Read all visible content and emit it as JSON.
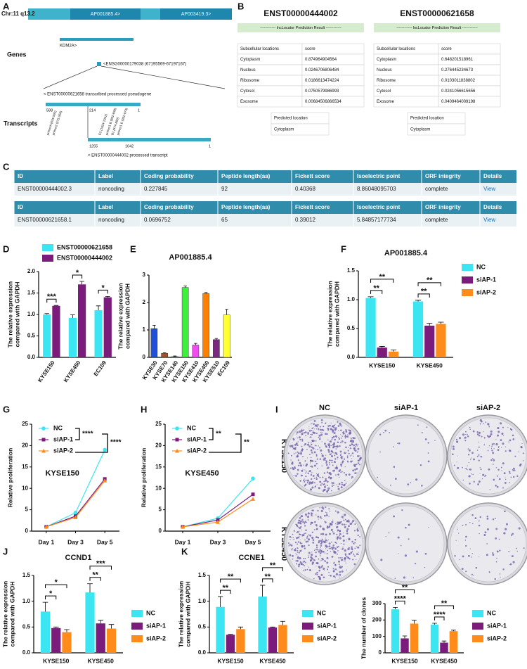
{
  "panel_labels": [
    "A",
    "B",
    "C",
    "D",
    "E",
    "F",
    "G",
    "H",
    "I",
    "J",
    "K"
  ],
  "panel_a": {
    "chromosome": "Chr:11 q13.2",
    "genes_on_track": [
      "AP001885.4>",
      "AP003419.3>"
    ],
    "genes_label": "Genes",
    "gene": "KDM2A>",
    "locus": "<ENSG00000179038 (67195569-67197167)",
    "transcript_1": "< ENST00000621658  transcribed processed pseudogene",
    "transcripts_label": "Transcripts",
    "transcript_1_coords": [
      "588",
      "214",
      "1"
    ],
    "transcript_2_coords": [
      "1255",
      "1042",
      "1"
    ],
    "transcript_2": "< ENST00000444002  processed transcript",
    "primers": [
      "primerA (634-593)",
      "primer2 (575-556)",
      "E2 (1024-1042)",
      "primer1 B (852-839)",
      "B1 (874-890)",
      "primer1 E (952-973)"
    ]
  },
  "panel_b": {
    "tables": [
      {
        "title": "ENST00000444002",
        "subtitle": "------------ lncLocator Prediction Result ------------",
        "headers": [
          "Subcellular locations",
          "score"
        ],
        "rows": [
          [
            "Cytoplasm",
            "0.874964904564"
          ],
          [
            "Nucleus",
            "0.0246706806484"
          ],
          [
            "Ribosome",
            "0.0186613474224"
          ],
          [
            "Cytosol",
            "0.0750579986993"
          ],
          [
            "Exosome",
            "0.00684506866534"
          ]
        ],
        "predicted": [
          "Predicted location",
          "Cytoplasm"
        ]
      },
      {
        "title": "ENST00000621658",
        "subtitle": "------------ lncLocator Prediction Result ------------",
        "headers": [
          "Subcellular locations",
          "score"
        ],
        "rows": [
          [
            "Cytoplasm",
            "0.648201518961"
          ],
          [
            "Nucleus",
            "0.276445234673"
          ],
          [
            "Ribosome",
            "0.0103011838802"
          ],
          [
            "Cytosol",
            "0.0241056615656"
          ],
          [
            "Exosome",
            "0.0409464009198"
          ]
        ],
        "predicted": [
          "Predicted location",
          "Cytoplasm"
        ]
      }
    ]
  },
  "panel_c": {
    "tables": [
      {
        "headers": [
          "ID",
          "Label",
          "Coding probability",
          "Peptide length(aa)",
          "Fickett score",
          "Isoelectric point",
          "ORF integrity",
          "Details"
        ],
        "row": [
          "ENST00000444002.3",
          "noncoding",
          "0.227845",
          "92",
          "0.40368",
          "8.86048095703",
          "complete",
          "View"
        ]
      },
      {
        "headers": [
          "ID",
          "Label",
          "Coding probability",
          "Peptide length(aa)",
          "Fickett score",
          "Isoelectric point",
          "ORF integrity",
          "Details"
        ],
        "row": [
          "ENST00000621658.1",
          "noncoding",
          "0.0696752",
          "65",
          "0.39012",
          "5.84857177734",
          "complete",
          "View"
        ]
      }
    ]
  },
  "panel_i": {
    "columns": [
      "NC",
      "siAP-1",
      "siAP-2"
    ],
    "rows": [
      "KYSE150",
      "KYSE450"
    ]
  },
  "chart_data": [
    {
      "type": "bar",
      "categories": [
        "KYSE150",
        "KYSE450",
        "EC109"
      ],
      "series": [
        {
          "name": "ENST00000621658",
          "color": "#3be6f2",
          "values": [
            1.0,
            0.92,
            1.1
          ],
          "errors": [
            0.02,
            0.07,
            0.1
          ]
        },
        {
          "name": "ENST00000444002",
          "color": "#7b1c7d",
          "values": [
            1.2,
            1.7,
            1.4
          ],
          "errors": [
            0.01,
            0.07,
            0.02
          ]
        }
      ],
      "ylabel": [
        "The relative expression",
        "compared with GAPDH"
      ],
      "ylim": [
        0,
        2
      ],
      "yticks": [
        {
          "value": 0,
          "label": "0.0"
        },
        0.5,
        {
          "value": 1,
          "label": "1.0"
        },
        1.5,
        {
          "value": 2,
          "label": "2.0"
        }
      ],
      "legend": "top",
      "significance": [
        "***",
        "*",
        "*"
      ]
    },
    {
      "type": "bar",
      "title": "AP001885.4",
      "categories": [
        "KYSE30",
        "KYSE70",
        "KYSE140",
        "KYSE150",
        "KYSE410",
        "KYSE450",
        "KYSE510",
        "EC109"
      ],
      "values": [
        1.05,
        0.15,
        0.03,
        2.55,
        0.45,
        2.33,
        0.65,
        1.55
      ],
      "errors": [
        0.12,
        0.02,
        0.02,
        0.05,
        0.06,
        0.03,
        0.04,
        0.2
      ],
      "colors": [
        "#1f4fd8",
        "#a0522d",
        "#26b3a8",
        "#3cf03c",
        "#f04cf0",
        "#ff8000",
        "#7b2b7d",
        "#ffff33"
      ],
      "ylabel": [
        "The relative expression",
        "compared with GAPDH"
      ],
      "ylim": [
        0,
        3
      ],
      "yticks": [
        0,
        1,
        2,
        3
      ]
    },
    {
      "type": "bar",
      "title": "AP001885.4",
      "categories": [
        "KYSE150",
        "KYSE450"
      ],
      "series": [
        {
          "name": "NC",
          "color": "#3be6f2",
          "values": [
            1.03,
            0.97
          ],
          "errors": [
            0.02,
            0.02
          ]
        },
        {
          "name": "siAP-1",
          "color": "#7b1c7d",
          "values": [
            0.17,
            0.55
          ],
          "errors": [
            0.02,
            0.04
          ]
        },
        {
          "name": "siAP-2",
          "color": "#ff8c1a",
          "values": [
            0.1,
            0.58
          ],
          "errors": [
            0.03,
            0.03
          ]
        }
      ],
      "ylabel": [
        "The relative expression",
        "compared with GAPDH"
      ],
      "ylim": [
        0,
        1.5
      ],
      "yticks": [
        {
          "value": 0,
          "label": "0.0"
        },
        0.5,
        {
          "value": 1,
          "label": "1.0"
        },
        1.5
      ],
      "legend": "right",
      "significance": [
        "**",
        "**",
        "**",
        "**"
      ]
    },
    {
      "type": "line",
      "categories": [
        "Day 1",
        "Day 3",
        "Day 5"
      ],
      "series": [
        {
          "name": "NC",
          "color": "#3be6f2",
          "marker": "circle",
          "values": [
            1,
            4.3,
            19
          ]
        },
        {
          "name": "siAP-1",
          "color": "#7b1c7d",
          "marker": "square",
          "values": [
            1,
            3.5,
            12.2
          ]
        },
        {
          "name": "siAP-2",
          "color": "#ff8c1a",
          "marker": "triangle",
          "values": [
            1,
            3.2,
            11.8
          ]
        }
      ],
      "ylabel": [
        "Relative proliferation"
      ],
      "annotation": "KYSE150",
      "ylim": [
        0,
        25
      ],
      "yticks": [
        0,
        5,
        10,
        15,
        20,
        25
      ],
      "legend": "upper left",
      "significance": [
        "****",
        "****"
      ]
    },
    {
      "type": "line",
      "categories": [
        "Day 1",
        "Day 3",
        "Day 5"
      ],
      "series": [
        {
          "name": "NC",
          "color": "#3be6f2",
          "marker": "circle",
          "values": [
            1,
            3,
            12.3
          ]
        },
        {
          "name": "siAP-1",
          "color": "#7b1c7d",
          "marker": "square",
          "values": [
            1,
            2.6,
            8.6
          ]
        },
        {
          "name": "siAP-2",
          "color": "#ff8c1a",
          "marker": "triangle",
          "values": [
            1,
            2.1,
            7.5
          ]
        }
      ],
      "ylabel": [
        "Relative proliferation"
      ],
      "annotation": "KYSE450",
      "ylim": [
        0,
        25
      ],
      "yticks": [
        0,
        5,
        10,
        15,
        20,
        25
      ],
      "legend": "upper left",
      "significance": [
        "**",
        "**"
      ]
    },
    {
      "type": "bar",
      "title": "CCND1",
      "categories": [
        "KYSE150",
        "KYSE450"
      ],
      "series": [
        {
          "name": "NC",
          "color": "#3be6f2",
          "values": [
            0.8,
            1.17
          ],
          "errors": [
            0.18,
            0.17
          ]
        },
        {
          "name": "siAP-1",
          "color": "#7b1c7d",
          "values": [
            0.48,
            0.57
          ],
          "errors": [
            0.02,
            0.06
          ]
        },
        {
          "name": "siAP-2",
          "color": "#ff8c1a",
          "values": [
            0.4,
            0.47
          ],
          "errors": [
            0.05,
            0.08
          ]
        }
      ],
      "ylabel": [
        "The relative expression",
        "compared with GAPDH"
      ],
      "ylim": [
        0,
        1.5
      ],
      "yticks": [
        {
          "value": 0,
          "label": "0.0"
        },
        0.5,
        {
          "value": 1,
          "label": "1.0"
        },
        1.5
      ],
      "legend": "right",
      "significance": [
        "*",
        "*",
        "**",
        "***"
      ]
    },
    {
      "type": "bar",
      "title": "CCNE1",
      "categories": [
        "KYSE150",
        "KYSE450"
      ],
      "series": [
        {
          "name": "NC",
          "color": "#3be6f2",
          "values": [
            0.89,
            1.09
          ],
          "errors": [
            0.2,
            0.22
          ]
        },
        {
          "name": "siAP-1",
          "color": "#7b1c7d",
          "values": [
            0.35,
            0.49
          ],
          "errors": [
            0.01,
            0.01
          ]
        },
        {
          "name": "siAP-2",
          "color": "#ff8c1a",
          "values": [
            0.46,
            0.54
          ],
          "errors": [
            0.04,
            0.07
          ]
        }
      ],
      "ylabel": [
        "The relative expression",
        "compared with GAPDH"
      ],
      "ylim": [
        0,
        1.5
      ],
      "yticks": [
        {
          "value": 0,
          "label": "0.0"
        },
        0.5,
        {
          "value": 1,
          "label": "1.0"
        },
        1.5
      ],
      "legend": "right",
      "significance": [
        "**",
        "**",
        "**",
        "**"
      ]
    },
    {
      "type": "bar",
      "categories": [
        "KYSE150",
        "KYSE450"
      ],
      "series": [
        {
          "name": "NC",
          "color": "#3be6f2",
          "values": [
            265,
            172
          ],
          "errors": [
            12,
            8
          ]
        },
        {
          "name": "siAP-1",
          "color": "#7b1c7d",
          "values": [
            88,
            62
          ],
          "errors": [
            15,
            10
          ]
        },
        {
          "name": "siAP-2",
          "color": "#ff8c1a",
          "values": [
            178,
            132
          ],
          "errors": [
            20,
            6
          ]
        }
      ],
      "ylabel": [
        "The number of clones"
      ],
      "ylim": [
        0,
        300
      ],
      "yticks": [
        0,
        100,
        200,
        300
      ],
      "legend": "right",
      "significance": [
        "****",
        "**",
        "****",
        "**"
      ]
    }
  ]
}
